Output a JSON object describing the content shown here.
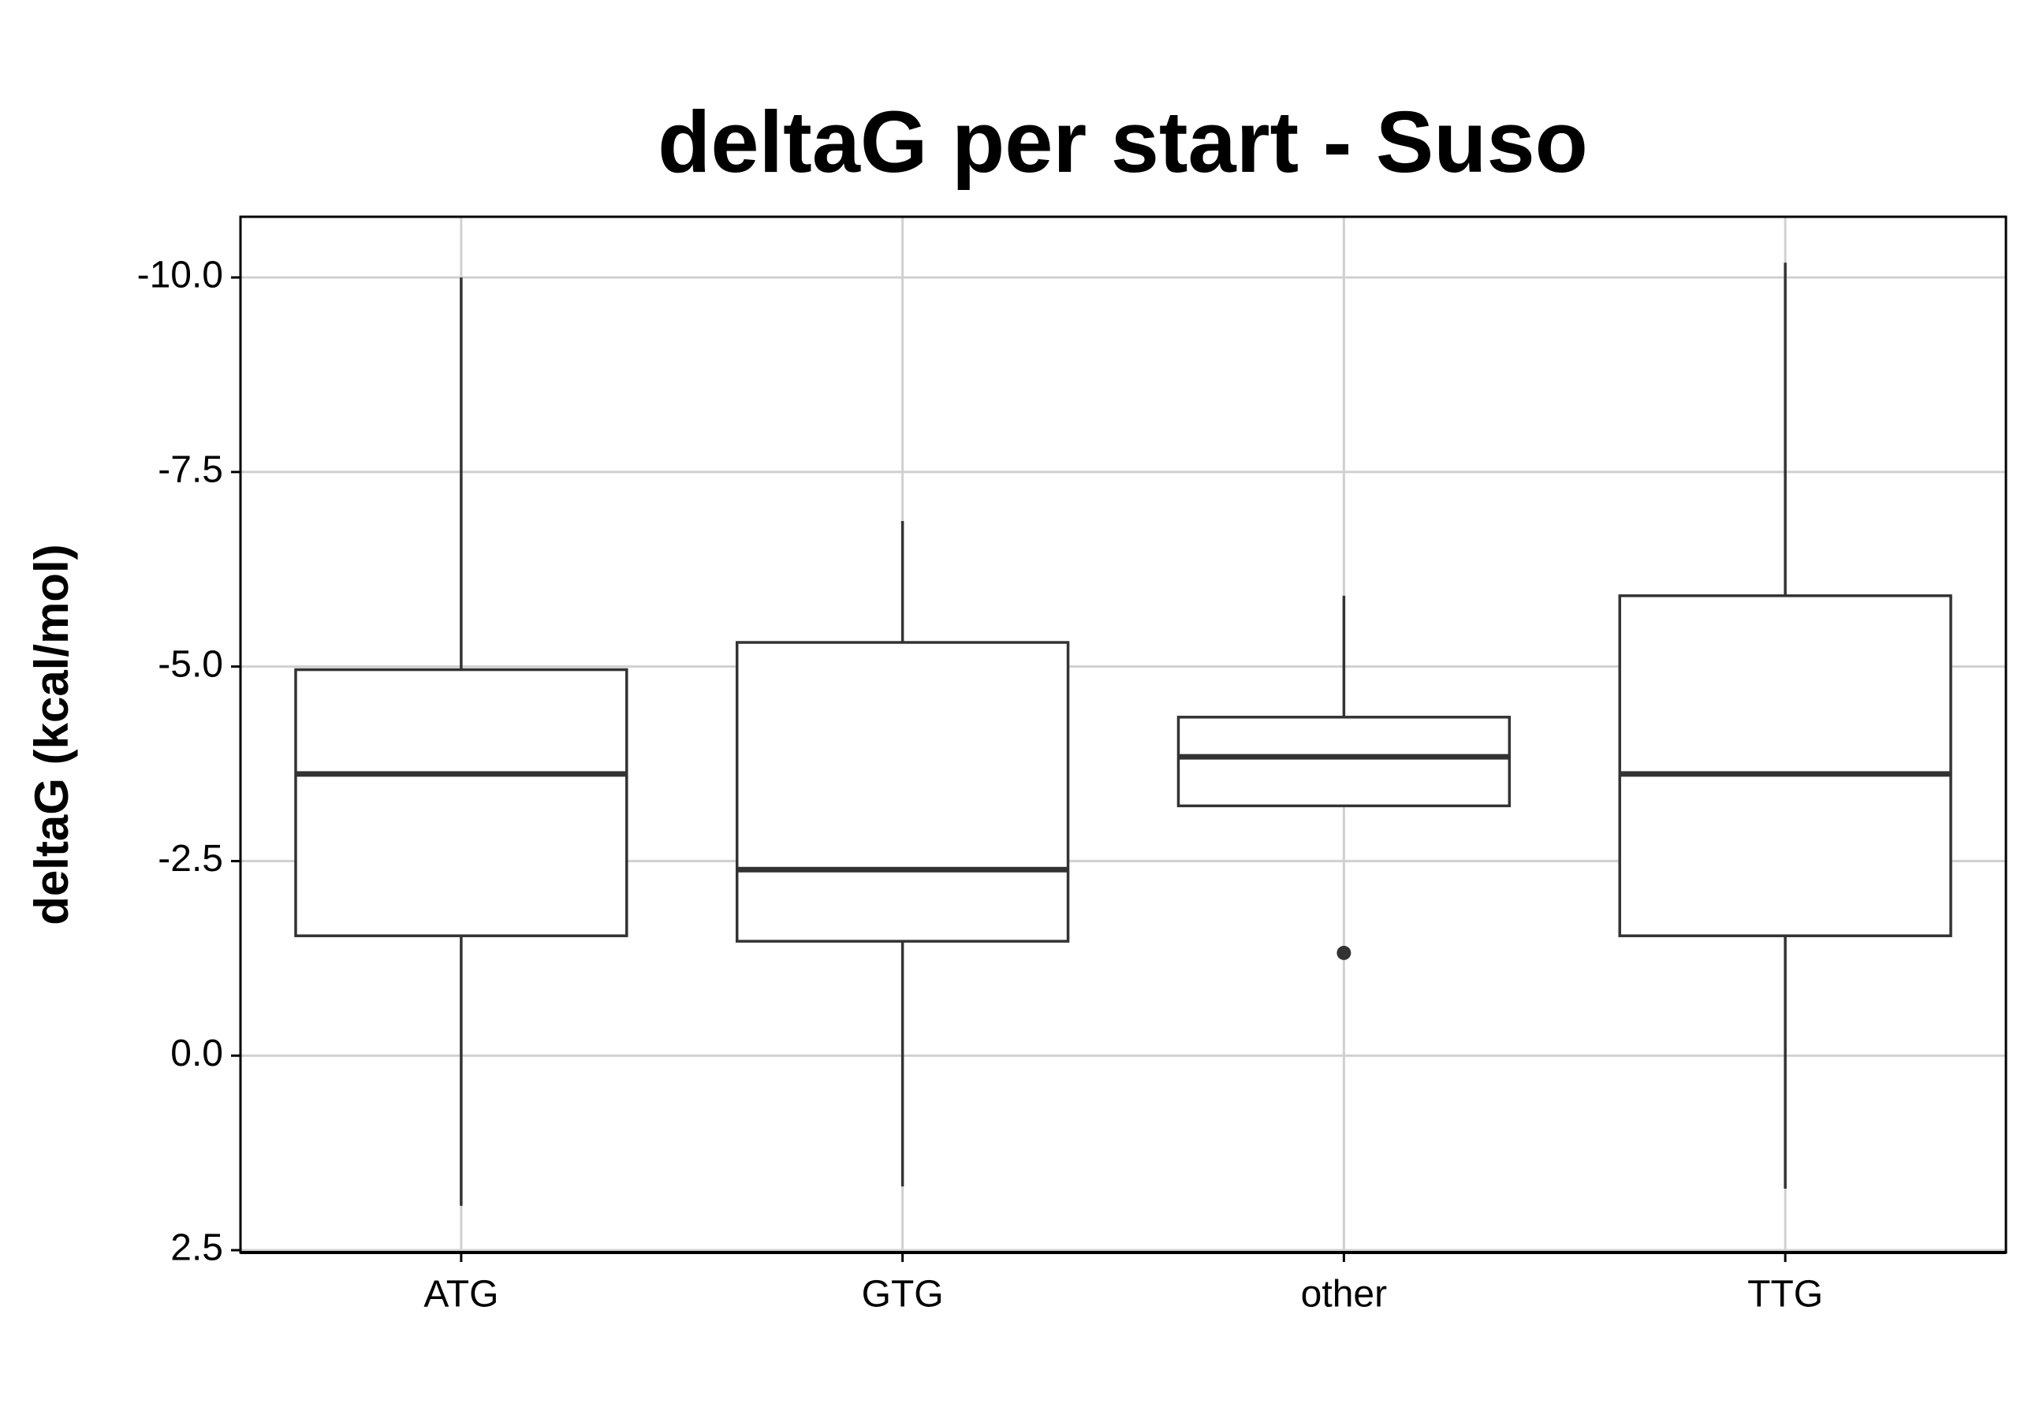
{
  "chart_data": {
    "type": "box",
    "title": "deltaG per start - Suso",
    "y_label": "deltaG (kcal/mol)",
    "categories": [
      "ATG",
      "GTG",
      "other",
      "TTG"
    ],
    "min": [
      -10.0,
      -6.87,
      -5.91,
      -10.19
    ],
    "q1": [
      -4.96,
      -5.31,
      -4.35,
      -5.91
    ],
    "median": [
      -3.62,
      -2.39,
      -3.84,
      -3.62
    ],
    "q3": [
      -1.54,
      -1.47,
      -3.21,
      -1.54
    ],
    "max": [
      1.93,
      1.68,
      -3.21,
      1.71
    ],
    "outliers": [
      [],
      [],
      [
        -1.32
      ],
      []
    ],
    "color": "#333333",
    "ylim": [
      -10.78,
      2.53
    ],
    "y_reversed": true,
    "yticks": [
      {
        "value": -10,
        "label": "-10.0"
      },
      -7.5,
      {
        "value": -5,
        "label": "-5.0"
      },
      -2.5,
      {
        "value": 0,
        "label": "0.0"
      },
      2.5
    ],
    "grid": true
  }
}
